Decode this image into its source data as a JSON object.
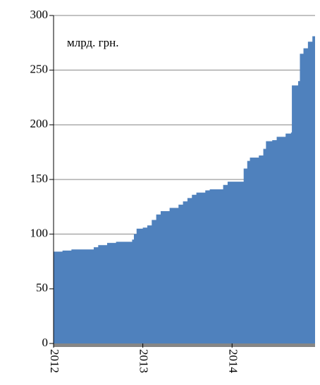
{
  "chart_data": {
    "type": "area",
    "annotation": "млрд. грн.",
    "x": [
      2012.0,
      2012.1,
      2012.2,
      2012.3,
      2012.4,
      2012.45,
      2012.5,
      2012.6,
      2012.7,
      2012.8,
      2012.88,
      2012.9,
      2012.93,
      2013.0,
      2013.05,
      2013.1,
      2013.15,
      2013.2,
      2013.3,
      2013.4,
      2013.45,
      2013.5,
      2013.55,
      2013.6,
      2013.7,
      2013.75,
      2013.85,
      2013.9,
      2013.95,
      2014.0,
      2014.13,
      2014.17,
      2014.2,
      2014.3,
      2014.35,
      2014.38,
      2014.45,
      2014.5,
      2014.6,
      2014.66,
      2014.67,
      2014.74,
      2014.76,
      2014.8,
      2014.85,
      2014.9,
      2014.93
    ],
    "values": [
      84,
      85,
      86,
      86,
      86,
      88,
      90,
      92,
      93,
      93,
      95,
      100,
      105,
      106,
      108,
      113,
      118,
      121,
      124,
      127,
      130,
      133,
      136,
      138,
      140,
      141,
      141,
      145,
      148,
      148,
      160,
      167,
      170,
      172,
      178,
      185,
      186,
      189,
      192,
      193,
      236,
      240,
      265,
      270,
      276,
      281,
      284
    ],
    "color": "#4f81bd",
    "xlim": [
      2012.0,
      2014.93
    ],
    "xticks": [
      2012,
      2013,
      2014
    ],
    "ylim": [
      0,
      300
    ],
    "yticks": [
      0,
      50,
      100,
      150,
      200,
      250,
      300
    ],
    "grid": true
  }
}
